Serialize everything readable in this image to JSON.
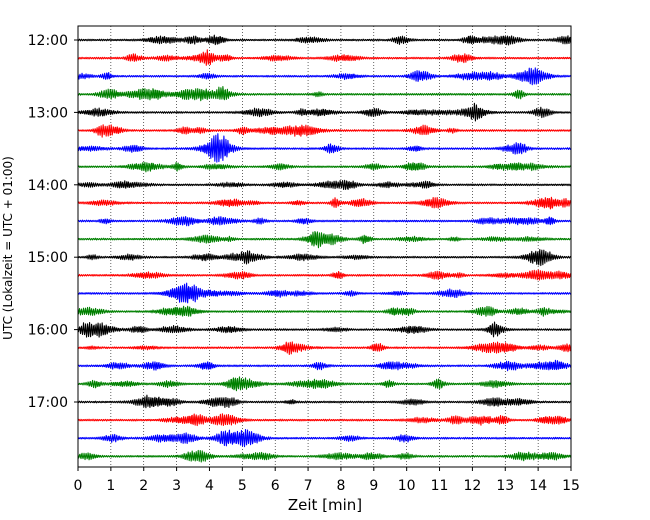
{
  "chart_data": {
    "type": "line",
    "subtype": "seismogram-helicorder",
    "xlabel": "Zeit  [min]",
    "ylabel": "UTC (Lokalzeit = UTC + 01:00)",
    "xlim": [
      0,
      15
    ],
    "x_ticks": [
      "0",
      "1",
      "2",
      "3",
      "4",
      "5",
      "6",
      "7",
      "8",
      "9",
      "10",
      "11",
      "12",
      "13",
      "14",
      "15"
    ],
    "y_tick_labels": [
      "12:00",
      "13:00",
      "14:00",
      "15:00",
      "16:00",
      "17:00"
    ],
    "grid": "vertical dotted at each minute",
    "trace_interval_minutes": 15,
    "trace_count": 24,
    "trace_colors": [
      "#000000",
      "#ff0000",
      "#0000ff",
      "#008000"
    ],
    "traces": [
      {
        "start": "12:00",
        "color": "#000000"
      },
      {
        "start": "12:15",
        "color": "#ff0000"
      },
      {
        "start": "12:30",
        "color": "#0000ff"
      },
      {
        "start": "12:45",
        "color": "#008000"
      },
      {
        "start": "13:00",
        "color": "#000000"
      },
      {
        "start": "13:15",
        "color": "#ff0000"
      },
      {
        "start": "13:30",
        "color": "#0000ff"
      },
      {
        "start": "13:45",
        "color": "#008000"
      },
      {
        "start": "14:00",
        "color": "#000000"
      },
      {
        "start": "14:15",
        "color": "#ff0000"
      },
      {
        "start": "14:30",
        "color": "#0000ff"
      },
      {
        "start": "14:45",
        "color": "#008000"
      },
      {
        "start": "15:00",
        "color": "#000000"
      },
      {
        "start": "15:15",
        "color": "#ff0000"
      },
      {
        "start": "15:30",
        "color": "#0000ff"
      },
      {
        "start": "15:45",
        "color": "#008000"
      },
      {
        "start": "16:00",
        "color": "#000000"
      },
      {
        "start": "16:15",
        "color": "#ff0000"
      },
      {
        "start": "16:30",
        "color": "#0000ff"
      },
      {
        "start": "16:45",
        "color": "#008000"
      },
      {
        "start": "17:00",
        "color": "#000000"
      },
      {
        "start": "17:15",
        "color": "#ff0000"
      },
      {
        "start": "17:30",
        "color": "#0000ff"
      },
      {
        "start": "17:45",
        "color": "#008000"
      }
    ]
  }
}
